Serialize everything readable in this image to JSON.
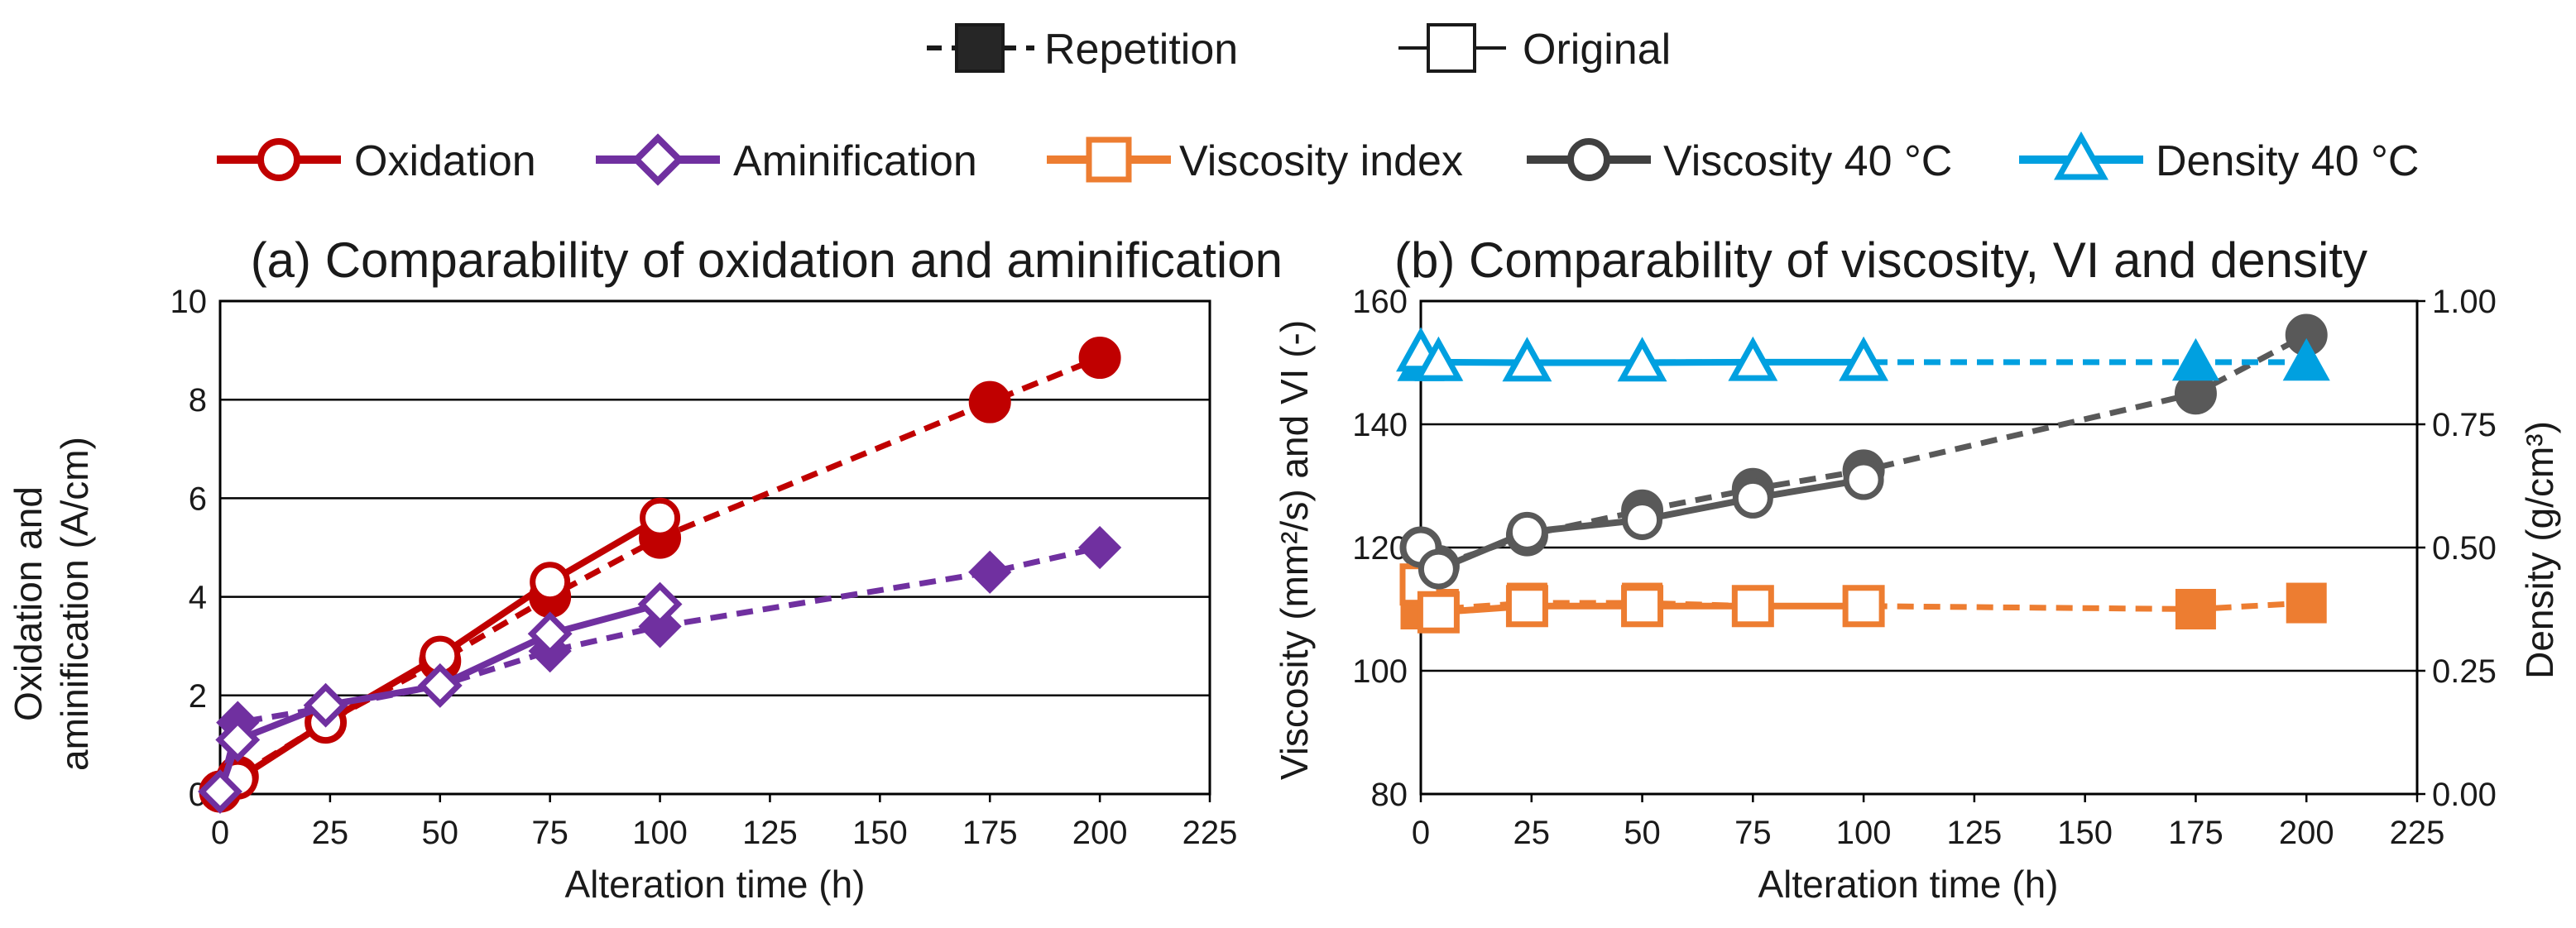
{
  "legend": {
    "style": [
      {
        "key": "repetition",
        "label": "Repetition",
        "line": "dashed",
        "marker": "filled-square"
      },
      {
        "key": "original",
        "label": "Original",
        "line": "solid",
        "marker": "open-square"
      }
    ],
    "series": [
      {
        "key": "oxidation",
        "label": "Oxidation",
        "color": "#c00000",
        "marker": "circle"
      },
      {
        "key": "aminification",
        "label": "Aminification",
        "color": "#7030a0",
        "marker": "diamond"
      },
      {
        "key": "vi",
        "label": "Viscosity index",
        "color": "#ed7d31",
        "marker": "square"
      },
      {
        "key": "viscosity",
        "label": "Viscosity 40 °C",
        "color": "#404040",
        "marker": "circle"
      },
      {
        "key": "density",
        "label": "Density 40 °C",
        "color": "#00a0e0",
        "marker": "triangle"
      }
    ]
  },
  "chart_data": [
    {
      "type": "line",
      "title": "(a) Comparability of oxidation and aminification",
      "xlabel": "Alteration time (h)",
      "ylabel_lines": [
        "Oxidation and",
        "aminification (A/cm)"
      ],
      "xlim": [
        0,
        225
      ],
      "ylim": [
        0,
        10
      ],
      "xticks": [
        0,
        25,
        50,
        75,
        100,
        125,
        150,
        175,
        200,
        225
      ],
      "yticks": [
        0,
        2,
        4,
        6,
        8,
        10
      ],
      "grid": "horizontal",
      "series": [
        {
          "name": "Oxidation",
          "variant": "Repetition",
          "color": "#c00000",
          "marker": "circle",
          "filled": true,
          "dashed": true,
          "x": [
            0,
            4,
            24,
            50,
            75,
            100,
            175,
            200
          ],
          "y": [
            0.05,
            0.35,
            1.45,
            2.7,
            4.0,
            5.2,
            7.95,
            8.85
          ]
        },
        {
          "name": "Oxidation",
          "variant": "Original",
          "color": "#c00000",
          "marker": "circle",
          "filled": false,
          "dashed": false,
          "x": [
            0,
            4,
            24,
            50,
            75,
            100
          ],
          "y": [
            0.05,
            0.3,
            1.45,
            2.8,
            4.3,
            5.6
          ]
        },
        {
          "name": "Aminification",
          "variant": "Repetition",
          "color": "#7030a0",
          "marker": "diamond",
          "filled": true,
          "dashed": true,
          "x": [
            0,
            4,
            24,
            50,
            75,
            100,
            175,
            200
          ],
          "y": [
            0.05,
            1.45,
            1.75,
            2.2,
            2.9,
            3.4,
            4.5,
            5.0
          ]
        },
        {
          "name": "Aminification",
          "variant": "Original",
          "color": "#7030a0",
          "marker": "diamond",
          "filled": false,
          "dashed": false,
          "x": [
            0,
            4,
            24,
            50,
            75,
            100
          ],
          "y": [
            0.05,
            1.1,
            1.8,
            2.2,
            3.25,
            3.85
          ]
        }
      ]
    },
    {
      "type": "line",
      "title": "(b) Comparability of viscosity, VI and density",
      "xlabel": "Alteration time (h)",
      "ylabel_left": "Viscosity (mm²/s)  and VI (-)",
      "ylabel_right": "Density (g/cm³)",
      "xlim": [
        0,
        225
      ],
      "ylim_left": [
        80,
        160
      ],
      "ylim_right": [
        0,
        1
      ],
      "xticks": [
        0,
        25,
        50,
        75,
        100,
        125,
        150,
        175,
        200,
        225
      ],
      "yticks_left": [
        80,
        100,
        120,
        140,
        160
      ],
      "yticks_right": [
        "0.00",
        "0.25",
        "0.50",
        "0.75",
        "1.00"
      ],
      "grid": "horizontal",
      "series": [
        {
          "name": "Viscosity index",
          "variant": "Repetition",
          "axis": "left",
          "color": "#ed7d31",
          "marker": "square",
          "filled": true,
          "dashed": true,
          "x": [
            0,
            4,
            24,
            50,
            75,
            100,
            175,
            200
          ],
          "y": [
            110,
            110,
            111,
            111,
            110.5,
            110.5,
            110,
            111
          ]
        },
        {
          "name": "Viscosity index",
          "variant": "Original",
          "axis": "left",
          "color": "#ed7d31",
          "marker": "square",
          "filled": false,
          "dashed": false,
          "x": [
            0,
            4,
            24,
            50,
            75,
            100
          ],
          "y": [
            114,
            109.5,
            110.5,
            110.5,
            110.5,
            110.5
          ]
        },
        {
          "name": "Viscosity 40 °C",
          "variant": "Repetition",
          "axis": "left",
          "color": "#595959",
          "marker": "circle",
          "filled": true,
          "dashed": true,
          "x": [
            0,
            4,
            24,
            50,
            75,
            100,
            175,
            200
          ],
          "y": [
            120,
            117,
            122,
            126,
            129.5,
            132.5,
            145,
            154.5
          ]
        },
        {
          "name": "Viscosity 40 °C",
          "variant": "Original",
          "axis": "left",
          "color": "#595959",
          "marker": "circle",
          "filled": false,
          "dashed": false,
          "x": [
            0,
            4,
            24,
            50,
            75,
            100
          ],
          "y": [
            120,
            116.5,
            122.5,
            124.5,
            128,
            131
          ]
        },
        {
          "name": "Density 40 °C",
          "variant": "Repetition",
          "axis": "right",
          "color": "#00a0e0",
          "marker": "triangle",
          "filled": true,
          "dashed": true,
          "x": [
            0,
            4,
            24,
            50,
            75,
            100,
            175,
            200
          ],
          "y": [
            0.875,
            0.875,
            0.875,
            0.876,
            0.876,
            0.876,
            0.876,
            0.876
          ]
        },
        {
          "name": "Density 40 °C",
          "variant": "Original",
          "axis": "right",
          "color": "#00a0e0",
          "marker": "triangle",
          "filled": false,
          "dashed": false,
          "x": [
            0,
            4,
            24,
            50,
            75,
            100
          ],
          "y": [
            0.895,
            0.876,
            0.875,
            0.875,
            0.876,
            0.876
          ]
        }
      ]
    }
  ]
}
